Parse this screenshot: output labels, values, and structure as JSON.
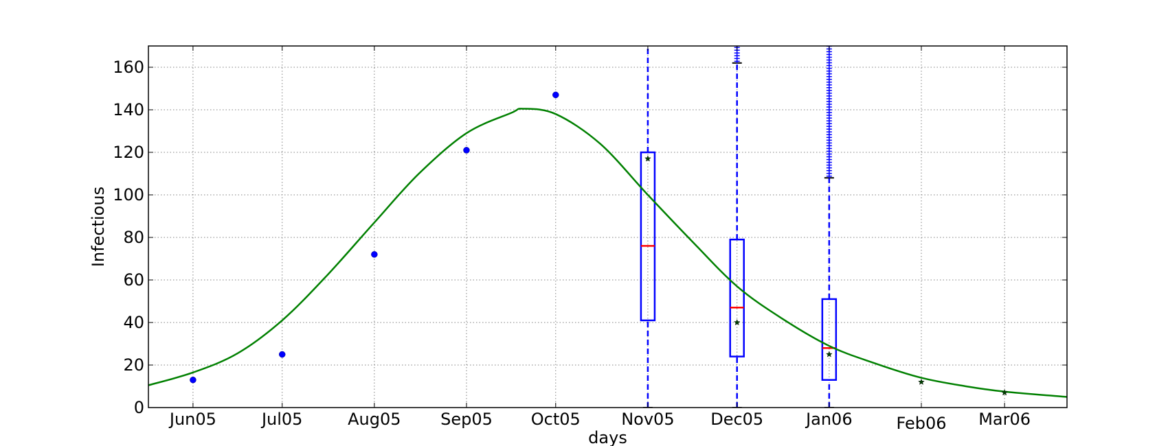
{
  "chart_data": {
    "type": "line",
    "title": "",
    "xlabel": "days",
    "ylabel": "Infectious",
    "ylim": [
      0,
      170
    ],
    "yticks": [
      0,
      20,
      40,
      60,
      80,
      100,
      120,
      140,
      160
    ],
    "xlim": [
      "2005-05-17",
      "2006-03-22"
    ],
    "xticks": [
      {
        "date": "2005-06-01",
        "label": "Jun05"
      },
      {
        "date": "2005-07-01",
        "label": "Jul05"
      },
      {
        "date": "2005-08-01",
        "label": "Aug05"
      },
      {
        "date": "2005-09-01",
        "label": "Sep05"
      },
      {
        "date": "2005-10-01",
        "label": "Oct05"
      },
      {
        "date": "2005-11-01",
        "label": "Nov05"
      },
      {
        "date": "2005-12-01",
        "label": "Dec05"
      },
      {
        "date": "2006-01-01",
        "label": "Jan06"
      },
      {
        "date": "2006-02-01",
        "label": "Feb06"
      },
      {
        "date": "2006-03-01",
        "label": "Mar06"
      }
    ],
    "grid": true,
    "series": [
      {
        "kind": "scatter",
        "marker": "circle",
        "color": "#0000ff",
        "points": [
          {
            "x": "2005-06-01",
            "y": 13
          },
          {
            "x": "2005-07-01",
            "y": 25
          },
          {
            "x": "2005-08-01",
            "y": 72
          },
          {
            "x": "2005-09-01",
            "y": 121
          },
          {
            "x": "2005-10-01",
            "y": 147
          }
        ]
      },
      {
        "kind": "line",
        "color": "#008000",
        "points": [
          {
            "x": "2005-05-17",
            "y": 10.5
          },
          {
            "x": "2005-06-01",
            "y": 16.5
          },
          {
            "x": "2005-06-16",
            "y": 25.5
          },
          {
            "x": "2005-07-01",
            "y": 41
          },
          {
            "x": "2005-07-16",
            "y": 62
          },
          {
            "x": "2005-08-01",
            "y": 87
          },
          {
            "x": "2005-08-16",
            "y": 110
          },
          {
            "x": "2005-09-01",
            "y": 129
          },
          {
            "x": "2005-09-16",
            "y": 138.5
          },
          {
            "x": "2005-09-20",
            "y": 140.5
          },
          {
            "x": "2005-10-01",
            "y": 138
          },
          {
            "x": "2005-10-16",
            "y": 124
          },
          {
            "x": "2005-11-01",
            "y": 100
          },
          {
            "x": "2005-11-16",
            "y": 78
          },
          {
            "x": "2005-12-01",
            "y": 57
          },
          {
            "x": "2005-12-16",
            "y": 42
          },
          {
            "x": "2006-01-01",
            "y": 29
          },
          {
            "x": "2006-01-16",
            "y": 21
          },
          {
            "x": "2006-02-01",
            "y": 14
          },
          {
            "x": "2006-02-16",
            "y": 10
          },
          {
            "x": "2006-03-01",
            "y": 7.5
          },
          {
            "x": "2006-03-22",
            "y": 5
          }
        ]
      },
      {
        "kind": "scatter",
        "marker": "star",
        "color": "#004000",
        "points": [
          {
            "x": "2005-11-01",
            "y": 117
          },
          {
            "x": "2005-12-01",
            "y": 40
          },
          {
            "x": "2006-01-01",
            "y": 25
          },
          {
            "x": "2006-02-01",
            "y": 12
          },
          {
            "x": "2006-03-01",
            "y": 7
          }
        ]
      }
    ],
    "boxplots": [
      {
        "x": "2005-11-01",
        "q1": 41,
        "median": 76,
        "q3": 120,
        "whisker_low": 0,
        "whisker_high": 170
      },
      {
        "x": "2005-12-01",
        "q1": 24,
        "median": 47,
        "q3": 79,
        "whisker_low": 0,
        "whisker_high": 162,
        "outliers_from": 162,
        "outliers_to": 170
      },
      {
        "x": "2006-01-01",
        "q1": 13,
        "median": 28,
        "q3": 51,
        "whisker_low": 0,
        "whisker_high": 108,
        "outliers_from": 108,
        "outliers_to": 170
      }
    ],
    "colors": {
      "box": "#0000ff",
      "median": "#ff0000",
      "fit_line": "#008000",
      "observed": "#0000ff",
      "predicted": "#004000",
      "grid": "#808080"
    }
  }
}
